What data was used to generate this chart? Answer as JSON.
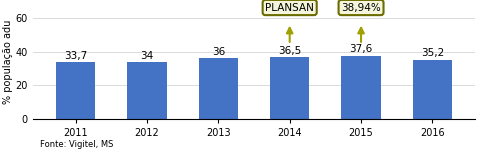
{
  "years": [
    "2011",
    "2012",
    "2013",
    "2014",
    "2015",
    "2016"
  ],
  "values": [
    33.7,
    34.0,
    36.0,
    36.5,
    37.6,
    35.2
  ],
  "bar_color": "#4472C4",
  "ylabel": "% população adu",
  "yticks": [
    0,
    20,
    40,
    60
  ],
  "ylim": [
    0,
    68
  ],
  "footnote": "Fonte: Vigitel, MS",
  "plansan_label": "PLANSAN",
  "meta_label": "38,94%",
  "plansan_bar_idx": 3,
  "meta_bar_idx": 4,
  "box_edge_color": "#6B6B00",
  "box_face_color": "#F5F5DC",
  "arrow_color": "#A0A000",
  "label_fontsize": 7.5,
  "tick_fontsize": 7,
  "footnote_fontsize": 6,
  "value_label_fontsize": 7.5
}
